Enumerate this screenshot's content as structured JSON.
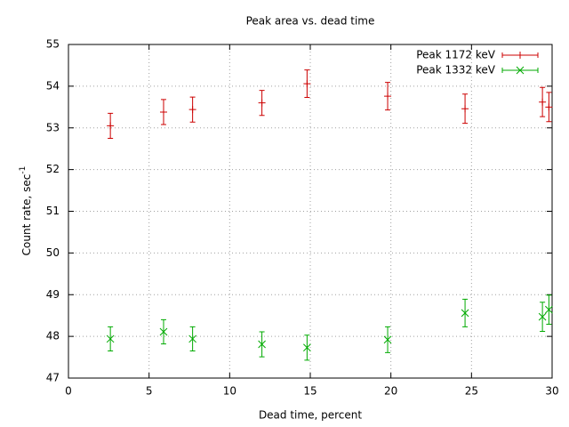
{
  "chart_data": {
    "type": "scatter",
    "title": "Peak area vs. dead time",
    "xlabel": "Dead time, percent",
    "ylabel": {
      "text": "Count rate, sec",
      "superscript": "-1"
    },
    "x": [
      2.6,
      5.9,
      7.7,
      12.0,
      14.8,
      19.8,
      24.6,
      29.4,
      29.8
    ],
    "series": [
      {
        "name": "Peak 1172 keV",
        "color": "#cc0000",
        "marker": "plus",
        "values": [
          53.05,
          53.38,
          53.44,
          53.6,
          54.06,
          53.76,
          53.46,
          53.62,
          53.5
        ],
        "errors": [
          0.3,
          0.3,
          0.3,
          0.3,
          0.33,
          0.33,
          0.35,
          0.35,
          0.35
        ]
      },
      {
        "name": "Peak 1332 keV",
        "color": "#00aa00",
        "marker": "cross",
        "values": [
          47.94,
          48.11,
          47.94,
          47.81,
          47.73,
          47.92,
          48.56,
          48.47,
          48.64
        ],
        "errors": [
          0.29,
          0.29,
          0.29,
          0.3,
          0.3,
          0.31,
          0.33,
          0.35,
          0.35
        ]
      }
    ],
    "xlim": [
      0,
      30
    ],
    "xticks": [
      0,
      5,
      10,
      15,
      20,
      25,
      30
    ],
    "ylim": [
      47,
      55
    ],
    "yticks": [
      47,
      48,
      49,
      50,
      51,
      52,
      53,
      54,
      55
    ],
    "grid": true,
    "legend": "top-right"
  }
}
